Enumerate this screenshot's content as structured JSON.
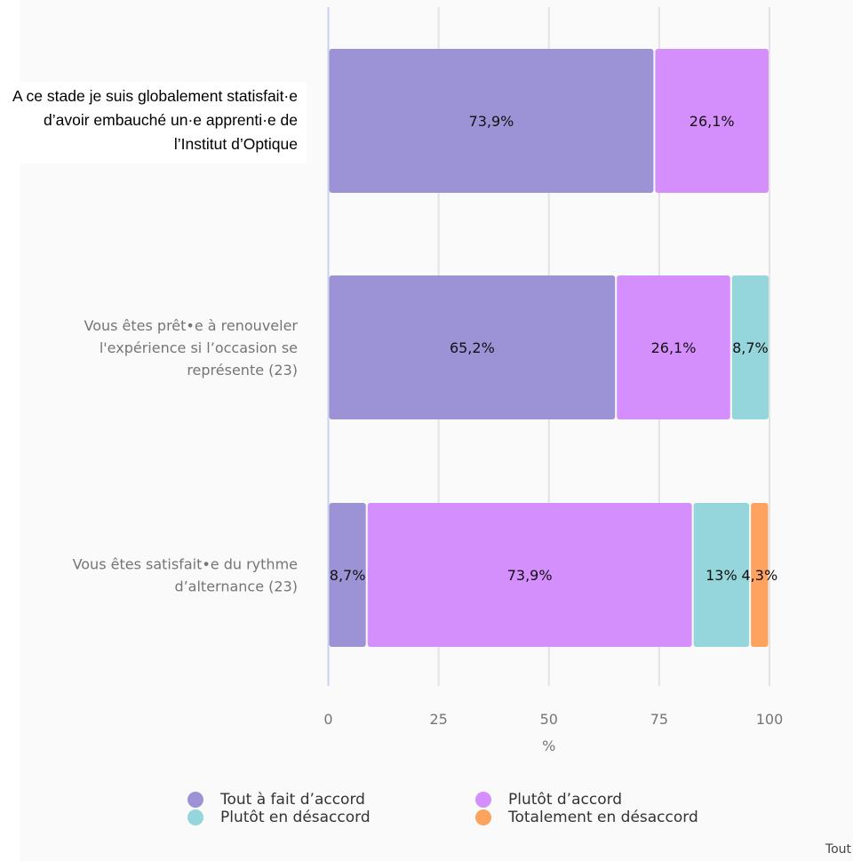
{
  "chart_data": {
    "type": "bar",
    "orientation": "horizontal",
    "stacked": true,
    "categories": [
      "A ce stade je suis globalement statisfait·e d’avoir embauché un·e apprenti·e de l’Institut d’Optique",
      "Vous êtes prêt•e à renouveler l'expérience si l’occasion se représente (23)",
      "Vous êtes satisfait•e du rythme d’alternance (23)"
    ],
    "series": [
      {
        "name": "Tout à fait d’accord",
        "color": "#9b93d6",
        "values": [
          73.9,
          65.2,
          8.7
        ],
        "labels": [
          "73,9%",
          "65,2%",
          "8,7%"
        ]
      },
      {
        "name": "Plutôt d’accord",
        "color": "#d48ffd",
        "values": [
          26.1,
          26.1,
          73.9
        ],
        "labels": [
          "26,1%",
          "26,1%",
          "73,9%"
        ]
      },
      {
        "name": "Plutôt en désaccord",
        "color": "#95d6dc",
        "values": [
          0,
          8.7,
          13
        ],
        "labels": [
          "",
          "8,7%",
          "13%"
        ]
      },
      {
        "name": "Totalement en désaccord",
        "color": "#fda35f",
        "values": [
          0,
          0,
          4.3
        ],
        "labels": [
          "",
          "",
          "4,3%"
        ]
      }
    ],
    "xlabel": "%",
    "xlim": [
      0,
      100
    ],
    "xticks": [
      0,
      25,
      50,
      75,
      100
    ],
    "grid": true,
    "legend_position": "bottom"
  },
  "footer": {
    "note": "Tout"
  }
}
